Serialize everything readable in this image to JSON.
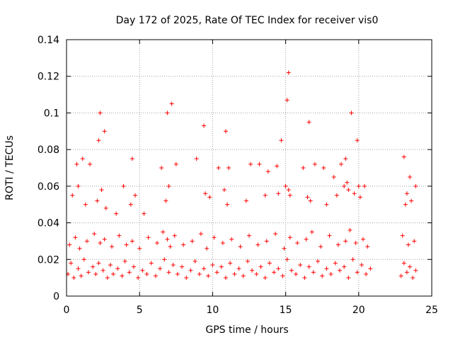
{
  "chart_data": {
    "type": "scatter",
    "title": "Day 172 of 2025, Rate Of TEC Index for receiver vis0",
    "xlabel": "GPS time / hours",
    "ylabel": "ROTI / TECUs",
    "xlim": [
      0,
      25
    ],
    "ylim": [
      0,
      0.14
    ],
    "xticks": [
      0,
      5,
      10,
      15,
      20,
      25
    ],
    "xtick_labels": [
      "0",
      "5",
      "10",
      "15",
      "20",
      "25"
    ],
    "yticks": [
      0,
      0.02,
      0.04,
      0.06,
      0.08,
      0.1,
      0.12,
      0.14
    ],
    "ytick_labels": [
      "0",
      "0.02",
      "0.04",
      "0.06",
      "0.08",
      "0.1",
      "0.12",
      "0.14"
    ],
    "grid": true,
    "marker": "plus",
    "color": "#ff0000",
    "series": [
      {
        "x": [
          0.1,
          0.3,
          0.5,
          0.8,
          1.0,
          1.2,
          1.5,
          1.8,
          2.0,
          2.2,
          2.5,
          2.8,
          3.0,
          3.2,
          3.5,
          3.8,
          4.0,
          4.3,
          4.6,
          4.9,
          5.2,
          5.5,
          5.8,
          6.1,
          6.4,
          6.7,
          7.0,
          7.3,
          7.6,
          7.9,
          8.2,
          8.5,
          8.8,
          9.1,
          9.4,
          9.7,
          10.0,
          10.3,
          10.6,
          10.9,
          11.2,
          11.5,
          11.8,
          12.1,
          12.4,
          12.7,
          13.0,
          13.3,
          13.6,
          13.9,
          14.2,
          14.5,
          14.8,
          15.1,
          15.4,
          15.7,
          16.0,
          16.3,
          16.6,
          16.9,
          17.2,
          17.5,
          17.8,
          18.1,
          18.4,
          18.7,
          19.0,
          19.3,
          19.6,
          19.9,
          20.2,
          20.5,
          20.8,
          22.9,
          23.1,
          23.3,
          23.5,
          23.7,
          23.9,
          0.2,
          0.6,
          0.9,
          1.4,
          1.9,
          2.3,
          2.6,
          3.1,
          3.6,
          4.1,
          4.5,
          5.0,
          5.6,
          6.2,
          6.6,
          6.9,
          7.1,
          7.4,
          8.0,
          8.6,
          9.2,
          9.6,
          10.1,
          10.7,
          11.3,
          11.9,
          12.5,
          13.1,
          13.7,
          14.3,
          14.9,
          15.3,
          15.8,
          16.4,
          16.8,
          17.4,
          18.0,
          18.6,
          19.1,
          19.4,
          19.8,
          20.3,
          20.6,
          23.0,
          23.4,
          23.8,
          0.4,
          0.8,
          1.3,
          2.1,
          2.4,
          2.7,
          3.4,
          4.4,
          4.7,
          6.8,
          7.0,
          9.5,
          9.8,
          10.8,
          11.0,
          12.3,
          13.6,
          14.5,
          15.0,
          15.2,
          15.3,
          16.5,
          16.7,
          17.8,
          18.5,
          19.0,
          19.2,
          19.3,
          19.7,
          20.0,
          20.1,
          23.2,
          23.3,
          23.6,
          0.7,
          1.1,
          1.6,
          2.2,
          2.3,
          2.6,
          3.9,
          4.5,
          5.3,
          6.5,
          6.9,
          7.2,
          7.5,
          8.9,
          9.4,
          10.4,
          10.9,
          11.1,
          12.6,
          13.2,
          13.8,
          14.4,
          14.7,
          15.1,
          15.2,
          16.2,
          16.6,
          17.0,
          17.6,
          18.3,
          18.8,
          19.1,
          19.5,
          19.9,
          20.4,
          23.1,
          23.5,
          23.9
        ],
        "y": [
          0.012,
          0.018,
          0.01,
          0.015,
          0.011,
          0.02,
          0.013,
          0.016,
          0.012,
          0.018,
          0.014,
          0.01,
          0.017,
          0.012,
          0.015,
          0.011,
          0.019,
          0.013,
          0.016,
          0.01,
          0.014,
          0.012,
          0.018,
          0.011,
          0.015,
          0.02,
          0.013,
          0.017,
          0.012,
          0.016,
          0.01,
          0.014,
          0.019,
          0.012,
          0.015,
          0.011,
          0.017,
          0.013,
          0.016,
          0.01,
          0.018,
          0.012,
          0.015,
          0.011,
          0.019,
          0.014,
          0.012,
          0.016,
          0.01,
          0.018,
          0.013,
          0.015,
          0.011,
          0.02,
          0.014,
          0.012,
          0.017,
          0.01,
          0.016,
          0.013,
          0.019,
          0.011,
          0.015,
          0.012,
          0.018,
          0.014,
          0.016,
          0.01,
          0.02,
          0.013,
          0.017,
          0.012,
          0.015,
          0.011,
          0.018,
          0.013,
          0.016,
          0.01,
          0.014,
          0.028,
          0.032,
          0.026,
          0.03,
          0.034,
          0.029,
          0.031,
          0.027,
          0.033,
          0.028,
          0.03,
          0.026,
          0.032,
          0.029,
          0.035,
          0.031,
          0.027,
          0.033,
          0.028,
          0.03,
          0.034,
          0.026,
          0.032,
          0.029,
          0.031,
          0.027,
          0.033,
          0.028,
          0.03,
          0.034,
          0.026,
          0.032,
          0.029,
          0.031,
          0.035,
          0.027,
          0.033,
          0.028,
          0.03,
          0.036,
          0.029,
          0.031,
          0.027,
          0.033,
          0.028,
          0.03,
          0.055,
          0.06,
          0.05,
          0.052,
          0.058,
          0.048,
          0.045,
          0.05,
          0.055,
          0.052,
          0.06,
          0.056,
          0.054,
          0.058,
          0.05,
          0.052,
          0.055,
          0.056,
          0.06,
          0.058,
          0.055,
          0.054,
          0.052,
          0.05,
          0.055,
          0.06,
          0.062,
          0.058,
          0.056,
          0.06,
          0.054,
          0.05,
          0.056,
          0.052,
          0.072,
          0.075,
          0.072,
          0.085,
          0.1,
          0.09,
          0.06,
          0.075,
          0.045,
          0.07,
          0.1,
          0.105,
          0.072,
          0.075,
          0.093,
          0.07,
          0.09,
          0.07,
          0.072,
          0.072,
          0.068,
          0.071,
          0.085,
          0.107,
          0.122,
          0.07,
          0.095,
          0.072,
          0.07,
          0.065,
          0.072,
          0.075,
          0.1,
          0.085,
          0.06,
          0.076,
          0.065,
          0.06
        ]
      }
    ]
  }
}
